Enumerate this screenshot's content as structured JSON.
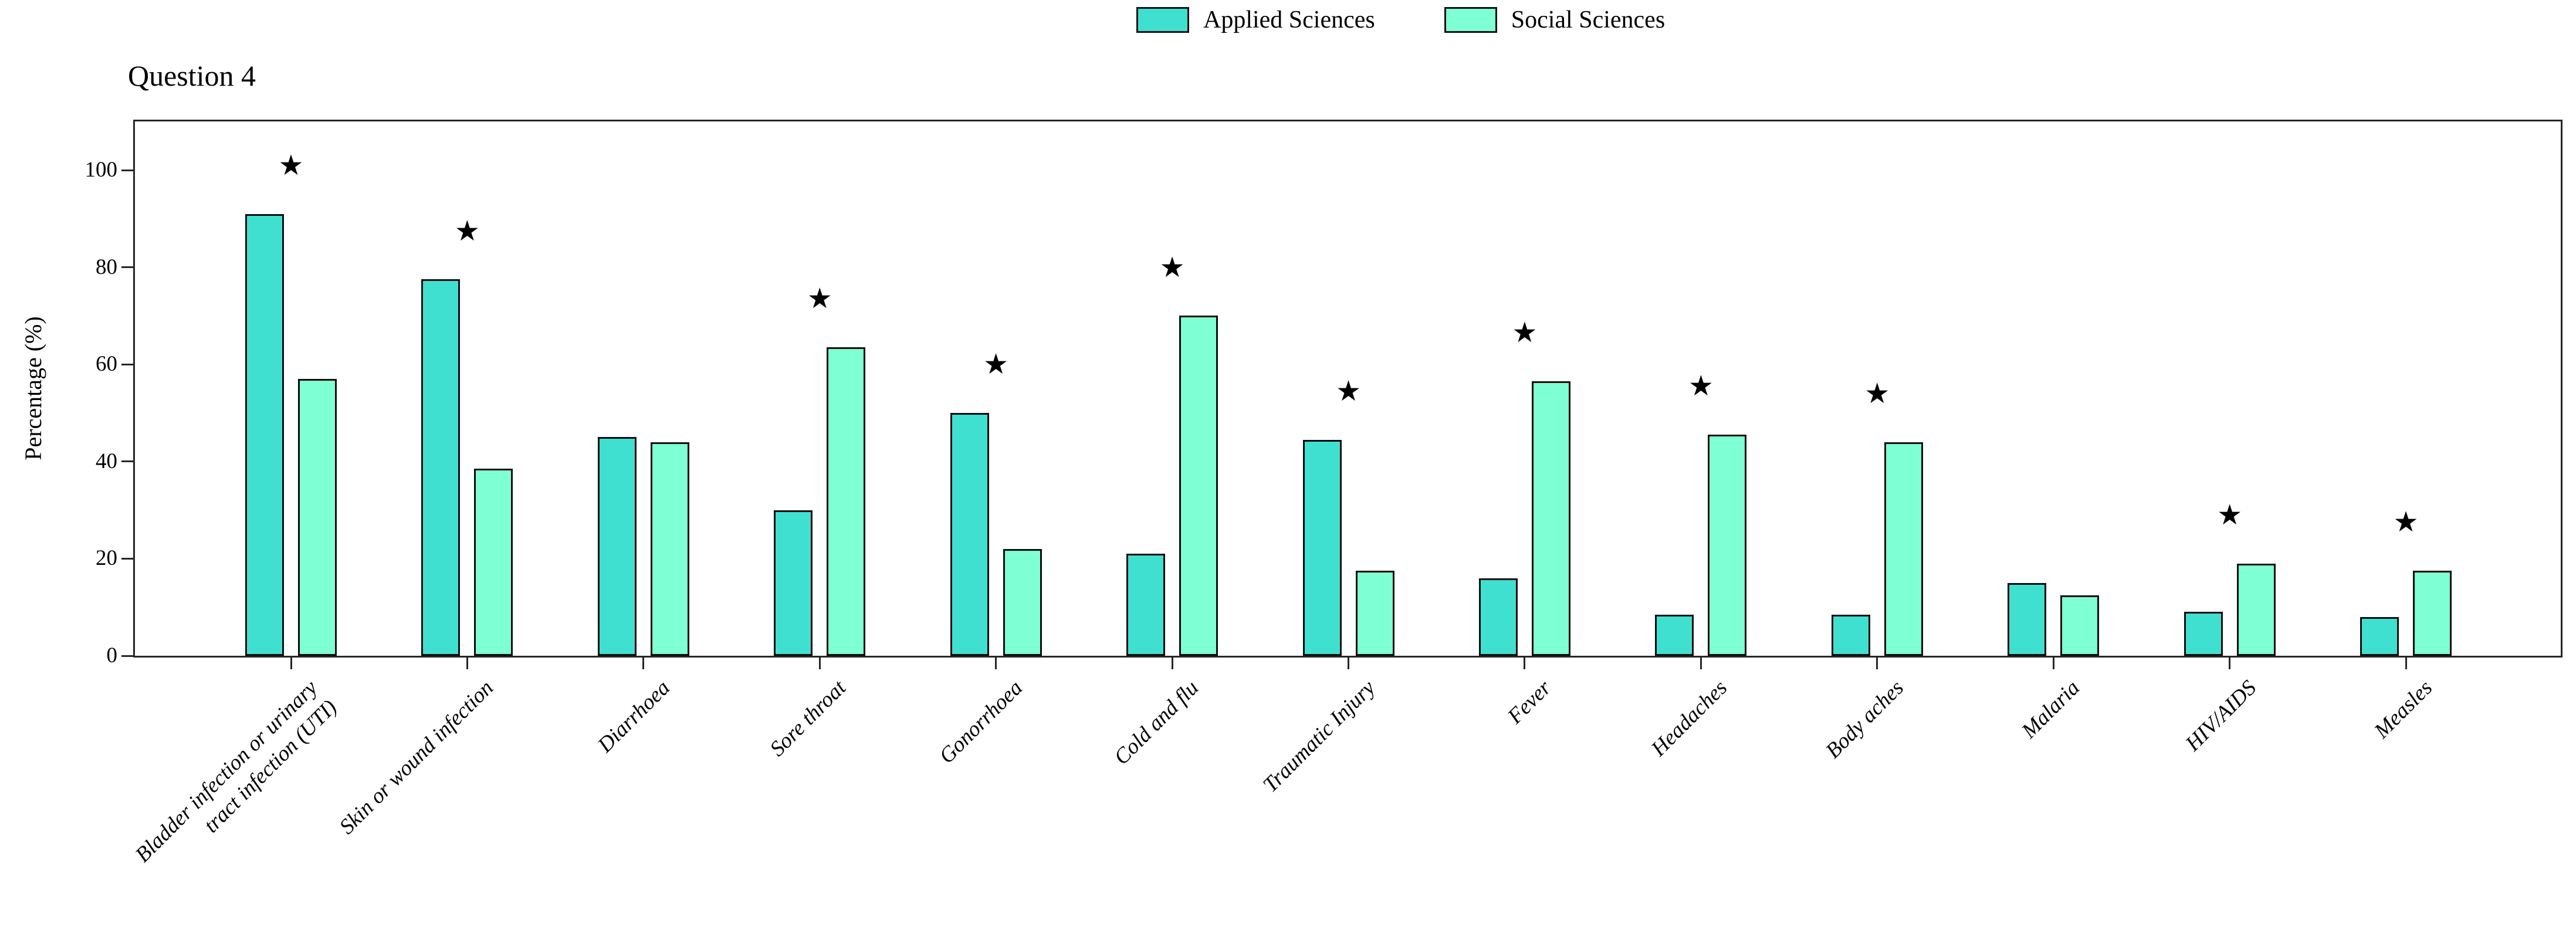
{
  "chart_data": {
    "type": "bar",
    "title": "Question 4",
    "ylabel": "Percentage (%)",
    "xlabel": "",
    "ylim": [
      0,
      110
    ],
    "yticks": [
      0,
      20,
      40,
      60,
      80,
      100
    ],
    "grid": false,
    "legend": {
      "position": "top-center",
      "entries": [
        "Applied Sciences",
        "Social Sciences"
      ]
    },
    "categories": [
      "Bladder infection or urinary\ntract infection (UTI)",
      "Skin or wound infection",
      "Diarrhoea",
      "Sore throat",
      "Gonorrhoea",
      "Cold and flu",
      "Traumatic Injury",
      "Fever",
      "Headaches",
      "Body aches",
      "Malaria",
      "HIV/AIDS",
      "Measles"
    ],
    "series": [
      {
        "name": "Applied Sciences",
        "color": "#40E0D0",
        "values": [
          91,
          77.5,
          45,
          30,
          50,
          21,
          44.5,
          16,
          8.5,
          8.5,
          15,
          9,
          8
        ]
      },
      {
        "name": "Social Sciences",
        "color": "#7FFFD4",
        "values": [
          57,
          38.5,
          44,
          63.5,
          22,
          70,
          17.5,
          56.5,
          45.5,
          44,
          12.5,
          19,
          17.5
        ]
      }
    ],
    "significance": {
      "marker": "★",
      "offset_units": 10,
      "flags": [
        true,
        true,
        false,
        true,
        true,
        true,
        true,
        true,
        true,
        true,
        false,
        true,
        true
      ]
    }
  }
}
